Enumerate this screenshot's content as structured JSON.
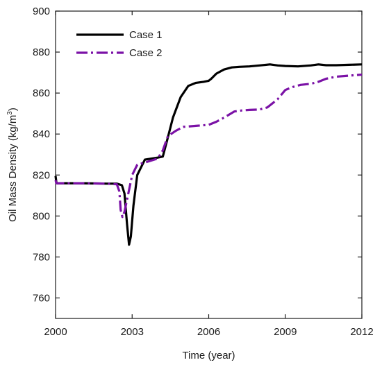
{
  "chart_data": {
    "type": "line",
    "title": "",
    "xlabel": "Time (year)",
    "ylabel_main": "Oil Mass Density (kg/m",
    "ylabel_sup": "3",
    "ylabel_close": ")",
    "xlim": [
      2000,
      2012
    ],
    "ylim": [
      750,
      900
    ],
    "xticks": [
      2000,
      2003,
      2006,
      2009,
      2012
    ],
    "yticks": [
      760,
      780,
      800,
      820,
      840,
      860,
      880,
      900
    ],
    "grid": false,
    "legend_position": "top-left",
    "series": [
      {
        "name": "Case 1",
        "color": "#000000",
        "dash": "solid",
        "x": [
          2000.0,
          2000.03,
          2000.06,
          2001.0,
          2002.0,
          2002.4,
          2002.6,
          2002.7,
          2002.8,
          2002.88,
          2002.95,
          2003.05,
          2003.2,
          2003.5,
          2004.0,
          2004.2,
          2004.35,
          2004.6,
          2004.9,
          2005.2,
          2005.5,
          2005.8,
          2006.0,
          2006.1,
          2006.3,
          2006.6,
          2006.9,
          2007.2,
          2007.6,
          2008.0,
          2008.4,
          2008.7,
          2009.0,
          2009.5,
          2010.0,
          2010.3,
          2010.6,
          2011.0,
          2011.5,
          2012.0
        ],
        "y": [
          819.5,
          816.5,
          816.0,
          816.0,
          815.8,
          815.8,
          815.0,
          811.0,
          796.0,
          786.0,
          790.0,
          805.0,
          820.0,
          827.5,
          828.5,
          829.0,
          836.0,
          848.0,
          858.0,
          863.5,
          865.0,
          865.5,
          866.0,
          867.0,
          869.5,
          871.5,
          872.5,
          872.8,
          873.0,
          873.5,
          874.0,
          873.5,
          873.2,
          873.0,
          873.5,
          874.0,
          873.6,
          873.6,
          873.8,
          874.0
        ]
      },
      {
        "name": "Case 2",
        "color": "#7b12a6",
        "dash": "dash-dot",
        "x": [
          2000.0,
          2000.03,
          2000.06,
          2001.0,
          2002.0,
          2002.4,
          2002.5,
          2002.55,
          2002.62,
          2002.7,
          2002.8,
          2002.9,
          2003.0,
          2003.2,
          2003.6,
          2004.0,
          2004.2,
          2004.4,
          2004.7,
          2005.0,
          2005.5,
          2006.0,
          2006.3,
          2006.6,
          2007.0,
          2007.3,
          2007.6,
          2008.0,
          2008.3,
          2008.7,
          2009.0,
          2009.3,
          2009.6,
          2010.0,
          2010.3,
          2010.6,
          2011.0,
          2011.5,
          2012.0
        ],
        "y": [
          817.5,
          816.0,
          816.0,
          816.0,
          815.8,
          815.5,
          812.0,
          803.0,
          799.5,
          802.0,
          808.0,
          814.0,
          820.0,
          825.0,
          826.5,
          828.0,
          832.0,
          839.0,
          841.5,
          843.5,
          844.0,
          844.5,
          846.0,
          848.0,
          851.0,
          851.5,
          851.8,
          852.0,
          853.0,
          857.0,
          861.5,
          863.0,
          864.0,
          864.5,
          865.5,
          867.0,
          868.0,
          868.5,
          869.0
        ]
      }
    ]
  }
}
